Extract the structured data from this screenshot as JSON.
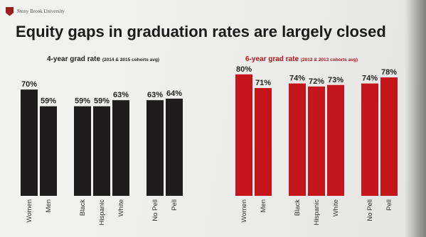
{
  "header": {
    "brand": "Stony Brook University",
    "title": "Equity gaps in graduation rates are largely closed"
  },
  "colors": {
    "four_year": "#1e1c1c",
    "six_year": "#c4151c"
  },
  "chart_data": [
    {
      "type": "bar",
      "title": "4-year grad rate",
      "subtitle": "(2014 & 2015 cohorts avg)",
      "categories": [
        "Women",
        "Men",
        "Black",
        "Hispanic",
        "White",
        "No Pell",
        "Pell"
      ],
      "groups": [
        [
          "Women",
          "Men"
        ],
        [
          "Black",
          "Hispanic",
          "White"
        ],
        [
          "No Pell",
          "Pell"
        ]
      ],
      "values": [
        70,
        59,
        59,
        59,
        63,
        63,
        64
      ],
      "value_labels": [
        "70%",
        "59%",
        "59%",
        "59%",
        "63%",
        "63%",
        "64%"
      ],
      "unit": "%",
      "ylim": [
        0,
        100
      ],
      "grid": false
    },
    {
      "type": "bar",
      "title": "6-year grad rate",
      "subtitle": "(2012 & 2013 cohorts avg)",
      "categories": [
        "Women",
        "Men",
        "Black",
        "Hispanic",
        "White",
        "No Pell",
        "Pell"
      ],
      "groups": [
        [
          "Women",
          "Men"
        ],
        [
          "Black",
          "Hispanic",
          "White"
        ],
        [
          "No Pell",
          "Pell"
        ]
      ],
      "values": [
        80,
        71,
        74,
        72,
        73,
        74,
        78
      ],
      "value_labels": [
        "80%",
        "71%",
        "74%",
        "72%",
        "73%",
        "74%",
        "78%"
      ],
      "unit": "%",
      "ylim": [
        0,
        100
      ],
      "grid": false
    }
  ]
}
